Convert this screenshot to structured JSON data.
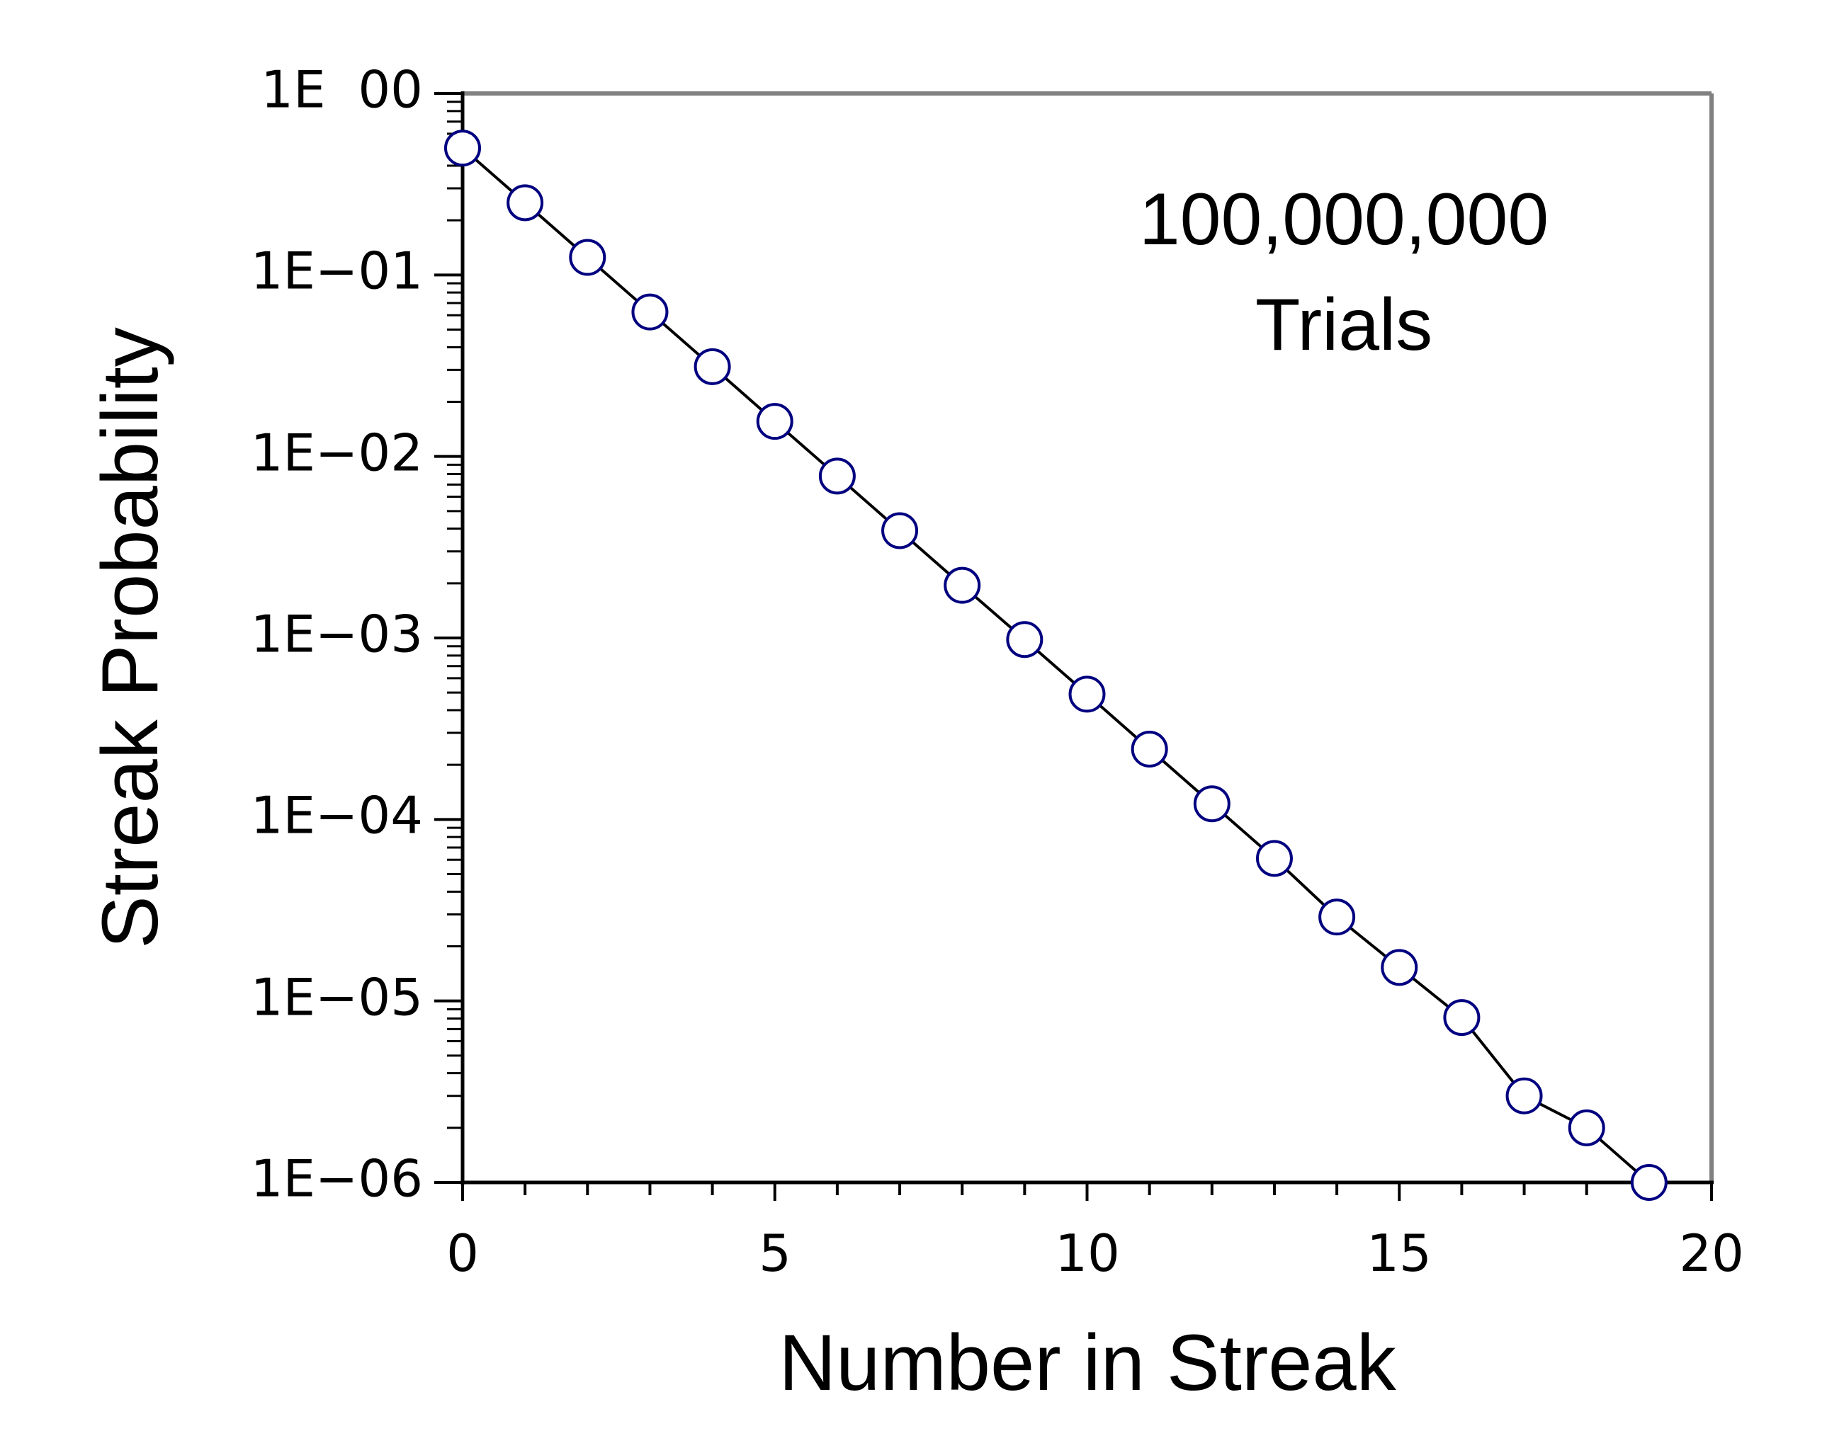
{
  "chart_data": {
    "type": "line",
    "xlabel": "Number in Streak",
    "ylabel": "Streak Probability",
    "xlim": [
      0,
      20
    ],
    "ylim": [
      1e-06,
      1
    ],
    "y_scale": "log",
    "grid": false,
    "x_ticks": [
      {
        "value": 0,
        "label": "0"
      },
      {
        "value": 5,
        "label": "5"
      },
      {
        "value": 10,
        "label": "10"
      },
      {
        "value": 15,
        "label": "15"
      },
      {
        "value": 20,
        "label": "20"
      }
    ],
    "y_ticks": [
      {
        "value": 1,
        "label": "1E  00"
      },
      {
        "value": 0.1,
        "label": "1E−01"
      },
      {
        "value": 0.01,
        "label": "1E−02"
      },
      {
        "value": 0.001,
        "label": "1E−03"
      },
      {
        "value": 0.0001,
        "label": "1E−04"
      },
      {
        "value": 1e-05,
        "label": "1E−05"
      },
      {
        "value": 1e-06,
        "label": "1E−06"
      }
    ],
    "annotation": [
      "100,000,000",
      "Trials"
    ],
    "series": [
      {
        "line_color": "#000000",
        "marker": "circle",
        "marker_edge_color": "#000080",
        "marker_face_color": "#ffffff",
        "x": [
          0,
          1,
          2,
          3,
          4,
          5,
          6,
          7,
          8,
          9,
          10,
          11,
          12,
          13,
          14,
          15,
          16,
          17,
          18,
          19
        ],
        "y": [
          0.5,
          0.25,
          0.125,
          0.0625,
          0.03125,
          0.0156,
          0.0078,
          0.0039,
          0.00195,
          0.00098,
          0.00049,
          0.000244,
          0.000122,
          6.1e-05,
          2.9e-05,
          1.53e-05,
          8.1e-06,
          3e-06,
          2e-06,
          1e-06
        ]
      }
    ]
  }
}
